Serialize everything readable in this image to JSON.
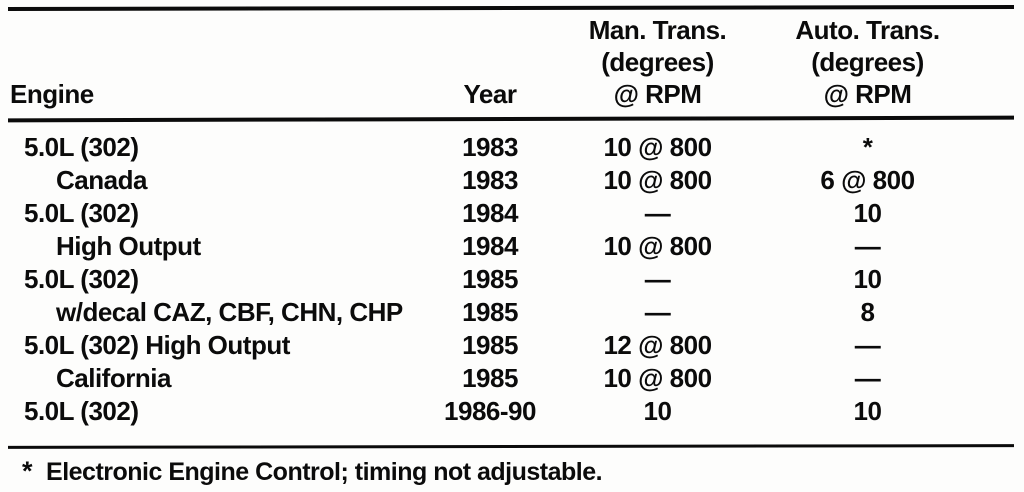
{
  "table": {
    "header": {
      "engine": "Engine",
      "year": "Year",
      "man_trans": {
        "line1": "Man. Trans.",
        "line2": "(degrees)",
        "line3": "@ RPM"
      },
      "auto_trans": {
        "line1": "Auto. Trans.",
        "line2": "(degrees)",
        "line3": "@ RPM"
      }
    },
    "rows": [
      {
        "engine": "5.0L (302)",
        "indent": false,
        "year": "1983",
        "man": "10 @ 800",
        "auto": "*"
      },
      {
        "engine": "Canada",
        "indent": true,
        "year": "1983",
        "man": "10 @ 800",
        "auto": "6 @ 800"
      },
      {
        "engine": "5.0L (302)",
        "indent": false,
        "year": "1984",
        "man": "—",
        "auto": "10"
      },
      {
        "engine": "High Output",
        "indent": true,
        "year": "1984",
        "man": "10 @ 800",
        "auto": "—"
      },
      {
        "engine": "5.0L (302)",
        "indent": false,
        "year": "1985",
        "man": "—",
        "auto": "10"
      },
      {
        "engine": "w/decal CAZ, CBF, CHN, CHP",
        "indent": true,
        "year": "1985",
        "man": "—",
        "auto": "8"
      },
      {
        "engine": "5.0L (302) High Output",
        "indent": false,
        "year": "1985",
        "man": "12 @ 800",
        "auto": "—"
      },
      {
        "engine": "California",
        "indent": true,
        "year": "1985",
        "man": "10 @ 800",
        "auto": "—"
      },
      {
        "engine": "5.0L (302)",
        "indent": false,
        "year": "1986-90",
        "man": "10",
        "auto": "10"
      }
    ],
    "footnote": {
      "marker": "*",
      "text": "Electronic Engine Control; timing not adjustable."
    }
  }
}
